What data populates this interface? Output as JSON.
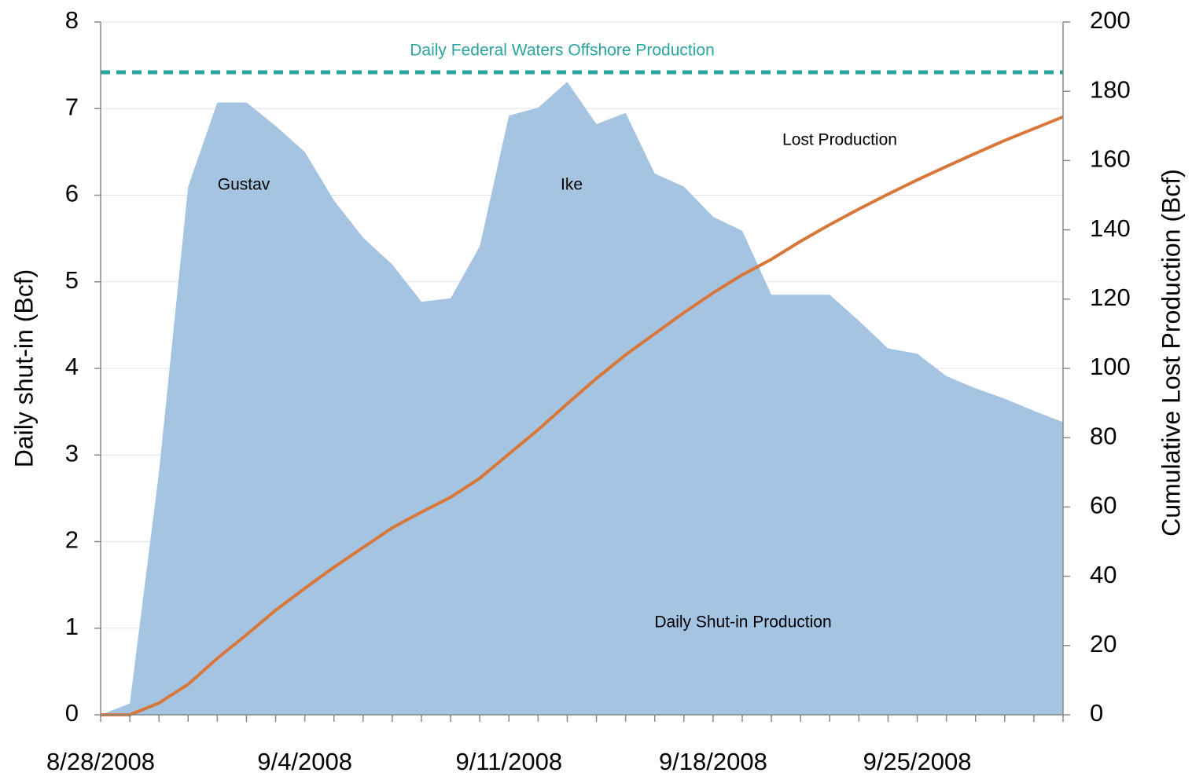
{
  "chart_data": {
    "type": "area-line",
    "y_label": "Daily shut-in  (Bcf)",
    "y2_label": "Cumulative Lost Production   (Bcf)",
    "categories": [
      "8/28/2008",
      null,
      null,
      null,
      null,
      null,
      null,
      "9/4/2008",
      null,
      null,
      null,
      null,
      null,
      null,
      "9/11/2008",
      null,
      null,
      null,
      null,
      null,
      null,
      "9/18/2008",
      null,
      null,
      null,
      null,
      null,
      null,
      "9/25/2008",
      null,
      null,
      null,
      null,
      null
    ],
    "series": [
      {
        "name": "Daily Shut-in Production",
        "kind": "area",
        "axis": "y",
        "color": "#a4c4e2",
        "values": [
          0,
          0.13,
          2.8,
          6.1,
          7.07,
          7.07,
          6.8,
          6.5,
          5.94,
          5.51,
          5.2,
          4.77,
          4.81,
          5.41,
          6.92,
          7.01,
          7.31,
          6.82,
          6.95,
          6.25,
          6.1,
          5.75,
          5.59,
          4.85,
          4.85,
          4.85,
          4.55,
          4.23,
          4.17,
          3.91,
          3.77,
          3.65,
          3.51,
          3.38
        ]
      },
      {
        "name": "Lost Production",
        "kind": "line",
        "axis": "y2",
        "color": "#d9773a",
        "values": [
          0,
          0,
          3.4,
          8.8,
          16.3,
          23.1,
          30.2,
          36.5,
          42.6,
          48.3,
          54,
          58.5,
          62.8,
          68.3,
          75.3,
          82.3,
          89.8,
          97.1,
          103.9,
          110,
          116.1,
          121.8,
          127,
          131.5,
          136.7,
          141.5,
          146,
          150.3,
          154.4,
          158.3,
          162.1,
          165.8,
          169.2,
          172.6
        ]
      }
    ],
    "reference_line": {
      "label": "Daily Federal Waters Offshore Production",
      "value": 7.42,
      "color": "#2aa5a0"
    },
    "annotations": [
      "Gustav",
      "Ike"
    ],
    "ylim": [
      0,
      8
    ],
    "yticks": [
      0,
      1,
      2,
      3,
      4,
      5,
      6,
      7,
      8
    ],
    "y2lim": [
      0,
      200
    ],
    "y2ticks": [
      0,
      20,
      40,
      60,
      80,
      100,
      120,
      140,
      160,
      180,
      200
    ],
    "grid": true
  }
}
